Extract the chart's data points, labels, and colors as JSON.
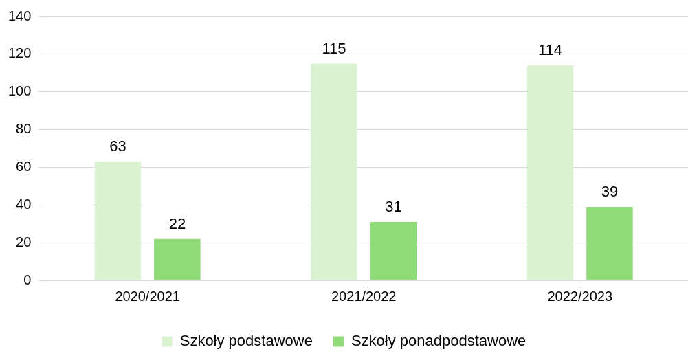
{
  "chart_data": {
    "type": "bar",
    "categories": [
      "2020/2021",
      "2021/2022",
      "2022/2023"
    ],
    "series": [
      {
        "name": "Szkoły podstawowe",
        "color": "#d9f2d0",
        "values": [
          63,
          115,
          114
        ]
      },
      {
        "name": "Szkoły ponadpodstawowe",
        "color": "#8fdb78",
        "values": [
          22,
          31,
          39
        ]
      }
    ],
    "ylim": [
      0,
      140
    ],
    "yticks": [
      0,
      20,
      40,
      60,
      80,
      100,
      120,
      140
    ],
    "grid": "y",
    "legend": "bottom",
    "data_labels": true
  }
}
